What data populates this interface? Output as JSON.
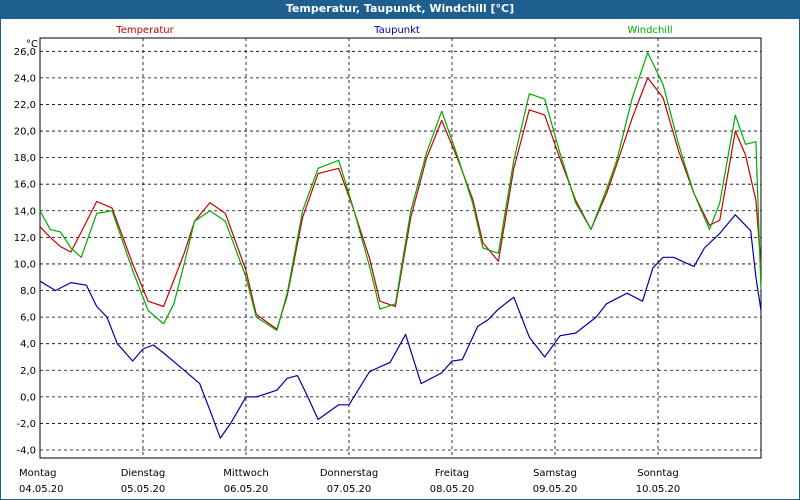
{
  "window": {
    "title": "Temperatur, Taupunkt, Windchill [°C]"
  },
  "chart_data": {
    "type": "line",
    "title": "Temperatur, Taupunkt, Windchill [°C]",
    "ylabel": "°C",
    "ylim": [
      -4.6,
      27.0
    ],
    "yticks": [
      "26,0",
      "24,0",
      "22,0",
      "20,0",
      "18,0",
      "16,0",
      "14,0",
      "12,0",
      "10,0",
      "8,0",
      "6,0",
      "4,0",
      "2,0",
      "0,0",
      "-2,0",
      "-4,0"
    ],
    "ytick_values": [
      26,
      24,
      22,
      20,
      18,
      16,
      14,
      12,
      10,
      8,
      6,
      4,
      2,
      0,
      -2,
      -4
    ],
    "xlim": [
      0,
      7
    ],
    "x_labels": [
      {
        "x": 0,
        "day": "Montag",
        "date": "04.05.20"
      },
      {
        "x": 1,
        "day": "Dienstag",
        "date": "05.05.20"
      },
      {
        "x": 2,
        "day": "Mittwoch",
        "date": "06.05.20"
      },
      {
        "x": 3,
        "day": "Donnerstag",
        "date": "07.05.20"
      },
      {
        "x": 4,
        "day": "Freitag",
        "date": "08.05.20"
      },
      {
        "x": 5,
        "day": "Samstag",
        "date": "09.05.20"
      },
      {
        "x": 6,
        "day": "Sonntag",
        "date": "10.05.20"
      }
    ],
    "grid": true,
    "series": [
      {
        "name": "Temperatur",
        "color": "#cc0000",
        "x": [
          0,
          0.1,
          0.2,
          0.3,
          0.4,
          0.55,
          0.7,
          0.9,
          1.05,
          1.2,
          1.4,
          1.5,
          1.65,
          1.8,
          2.0,
          2.1,
          2.3,
          2.4,
          2.55,
          2.7,
          2.9,
          3.05,
          3.2,
          3.3,
          3.45,
          3.6,
          3.75,
          3.9,
          4.05,
          4.2,
          4.3,
          4.45,
          4.6,
          4.75,
          4.9,
          5.05,
          5.2,
          5.35,
          5.5,
          5.6,
          5.75,
          5.9,
          6.05,
          6.2,
          6.35,
          6.5,
          6.6,
          6.75,
          6.85,
          6.95,
          7.0
        ],
        "y": [
          12.8,
          12.0,
          11.3,
          10.9,
          12.4,
          14.7,
          14.2,
          10.0,
          7.2,
          6.8,
          10.8,
          13.2,
          14.6,
          13.8,
          9.5,
          6.2,
          5.1,
          7.6,
          13.5,
          16.8,
          17.2,
          14.0,
          10.4,
          7.2,
          6.8,
          13.5,
          17.9,
          20.8,
          18.0,
          14.9,
          11.6,
          10.2,
          17.2,
          21.6,
          21.2,
          17.9,
          14.8,
          12.6,
          15.3,
          17.5,
          21.0,
          24.0,
          22.5,
          18.5,
          15.3,
          12.9,
          13.3,
          20.0,
          18.2,
          14.8,
          9.8
        ]
      },
      {
        "name": "Taupunkt",
        "color": "#0000aa",
        "x": [
          0,
          0.15,
          0.3,
          0.45,
          0.55,
          0.65,
          0.75,
          0.9,
          1.0,
          1.1,
          1.2,
          1.4,
          1.55,
          1.65,
          1.75,
          1.85,
          2.0,
          2.1,
          2.3,
          2.4,
          2.5,
          2.6,
          2.7,
          2.9,
          3.0,
          3.2,
          3.4,
          3.55,
          3.7,
          3.9,
          4.0,
          4.1,
          4.25,
          4.35,
          4.45,
          4.6,
          4.75,
          4.9,
          5.05,
          5.2,
          5.4,
          5.5,
          5.7,
          5.85,
          5.95,
          6.05,
          6.15,
          6.35,
          6.45,
          6.6,
          6.75,
          6.9,
          6.95,
          7.0
        ],
        "y": [
          8.7,
          8.0,
          8.6,
          8.4,
          6.8,
          6.0,
          4.0,
          2.7,
          3.6,
          3.9,
          3.3,
          2.0,
          1.0,
          -1.0,
          -3.1,
          -2.0,
          0.0,
          0.0,
          0.5,
          1.4,
          1.6,
          0.0,
          -1.7,
          -0.6,
          -0.6,
          1.9,
          2.6,
          4.7,
          1.0,
          1.8,
          2.7,
          2.8,
          5.3,
          5.8,
          6.6,
          7.5,
          4.5,
          3.0,
          4.6,
          4.8,
          6.0,
          7.0,
          7.8,
          7.2,
          9.7,
          10.5,
          10.5,
          9.8,
          11.2,
          12.3,
          13.7,
          12.5,
          9.0,
          6.5
        ]
      },
      {
        "name": "Windchill",
        "color": "#00aa00",
        "x": [
          0,
          0.1,
          0.2,
          0.3,
          0.4,
          0.55,
          0.7,
          0.9,
          1.05,
          1.2,
          1.3,
          1.4,
          1.5,
          1.65,
          1.8,
          2.0,
          2.1,
          2.3,
          2.4,
          2.55,
          2.7,
          2.9,
          3.05,
          3.2,
          3.3,
          3.45,
          3.6,
          3.75,
          3.9,
          4.05,
          4.2,
          4.3,
          4.45,
          4.6,
          4.75,
          4.9,
          5.05,
          5.2,
          5.35,
          5.5,
          5.6,
          5.75,
          5.9,
          6.05,
          6.2,
          6.35,
          6.5,
          6.6,
          6.75,
          6.85,
          6.95,
          7.0
        ],
        "y": [
          14.0,
          12.6,
          12.4,
          11.2,
          10.5,
          13.8,
          14.0,
          9.5,
          6.5,
          5.5,
          7.0,
          10.0,
          13.2,
          14.0,
          13.2,
          9.0,
          6.0,
          5.0,
          7.8,
          14.0,
          17.2,
          17.8,
          14.0,
          9.8,
          6.6,
          7.0,
          14.0,
          18.3,
          21.5,
          18.2,
          14.6,
          11.2,
          10.8,
          17.8,
          22.8,
          22.4,
          18.3,
          14.6,
          12.6,
          15.6,
          17.8,
          22.5,
          25.9,
          23.5,
          19.0,
          15.3,
          12.6,
          14.6,
          21.2,
          19.0,
          19.2,
          8.0
        ]
      }
    ]
  }
}
